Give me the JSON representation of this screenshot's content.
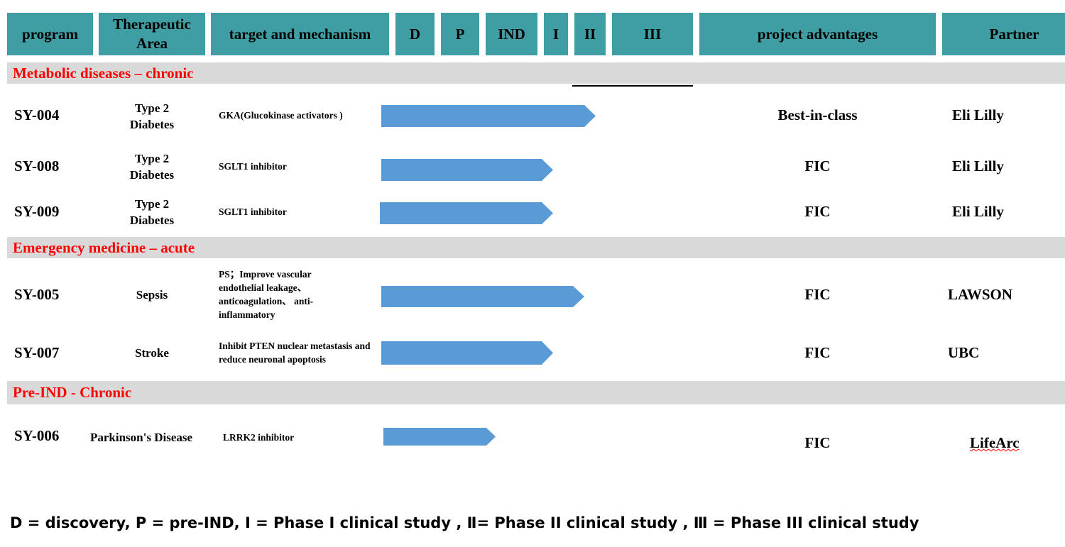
{
  "headers": {
    "program": "program",
    "area": "Therapeutic Area",
    "target": "target and mechanism",
    "d": "D",
    "p": "P",
    "ind": "IND",
    "i": "I",
    "ii": "II",
    "iii": "III",
    "advantages": "project advantages",
    "partner": "Partner"
  },
  "colors": {
    "header": "#3f9ea3",
    "band": "#d9d9d9",
    "band_text": "#ff0000",
    "arrow": "#5b9bd5"
  },
  "sections": {
    "metabolic": "Metabolic diseases –  chronic",
    "emergency": "Emergency medicine –  acute",
    "preind": "Pre-IND  -  Chronic"
  },
  "rows": [
    {
      "program": "SY-004",
      "area": "Type 2 Diabetes",
      "target": "GKA(Glucokinase activators )",
      "advantage": "Best-in-class",
      "partner": "Eli Lilly"
    },
    {
      "program": "SY-008",
      "area": "Type 2 Diabetes",
      "target": "SGLT1 inhibitor",
      "advantage": "FIC",
      "partner": "Eli Lilly"
    },
    {
      "program": "SY-009",
      "area": "Type 2 Diabetes",
      "target": "SGLT1 inhibitor",
      "advantage": "FIC",
      "partner": "Eli Lilly"
    },
    {
      "program": "SY-005",
      "area": "Sepsis",
      "target": "PS；Improve vascular endothelial leakage、anticoagulation、 anti-inflammatory",
      "advantage": "FIC",
      "partner": "LAWSON"
    },
    {
      "program": "SY-007",
      "area": "Stroke",
      "target": "Inhibit PTEN nuclear metastasis and reduce neuronal apoptosis",
      "advantage": "FIC",
      "partner": "UBC"
    },
    {
      "program": "SY-006",
      "area": "Parkinson's Disease",
      "target": "LRRK2  inhibitor",
      "advantage": "FIC",
      "partner": "LifeArc"
    }
  ],
  "legend": "D = discovery, P = pre-IND,   Ⅰ  = Phase I clinical study , Ⅱ= Phase II clinical study ,   Ⅲ = Phase III clinical study"
}
